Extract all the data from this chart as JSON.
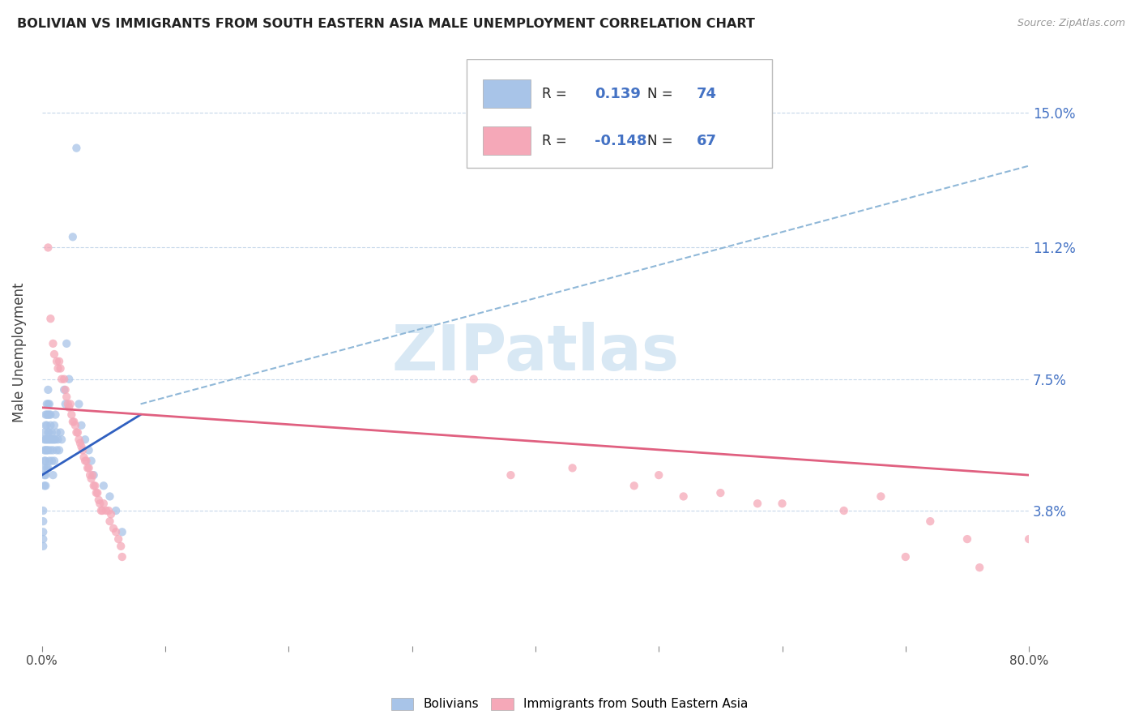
{
  "title": "BOLIVIAN VS IMMIGRANTS FROM SOUTH EASTERN ASIA MALE UNEMPLOYMENT CORRELATION CHART",
  "source": "Source: ZipAtlas.com",
  "ylabel": "Male Unemployment",
  "xlim": [
    0.0,
    0.8
  ],
  "ylim": [
    0.0,
    0.165
  ],
  "yticks": [
    0.038,
    0.075,
    0.112,
    0.15
  ],
  "ytick_labels": [
    "3.8%",
    "7.5%",
    "11.2%",
    "15.0%"
  ],
  "xticks": [
    0.0,
    0.1,
    0.2,
    0.3,
    0.4,
    0.5,
    0.6,
    0.7,
    0.8
  ],
  "blue_R": "0.139",
  "blue_N": "74",
  "pink_R": "-0.148",
  "pink_N": "67",
  "blue_scatter_color": "#a8c4e8",
  "pink_scatter_color": "#f5a8b8",
  "blue_line_color": "#3060c0",
  "pink_line_color": "#e06080",
  "dash_line_color": "#90b8d8",
  "watermark_color": "#d8e8f4",
  "legend_label_blue": "Bolivians",
  "legend_label_pink": "Immigrants from South Eastern Asia",
  "blue_x": [
    0.001,
    0.001,
    0.001,
    0.001,
    0.001,
    0.002,
    0.002,
    0.002,
    0.002,
    0.002,
    0.002,
    0.002,
    0.003,
    0.003,
    0.003,
    0.003,
    0.003,
    0.003,
    0.003,
    0.004,
    0.004,
    0.004,
    0.004,
    0.004,
    0.004,
    0.005,
    0.005,
    0.005,
    0.005,
    0.005,
    0.005,
    0.005,
    0.006,
    0.006,
    0.006,
    0.006,
    0.006,
    0.007,
    0.007,
    0.007,
    0.007,
    0.008,
    0.008,
    0.008,
    0.009,
    0.009,
    0.009,
    0.01,
    0.01,
    0.01,
    0.011,
    0.011,
    0.012,
    0.012,
    0.013,
    0.014,
    0.015,
    0.016,
    0.018,
    0.019,
    0.02,
    0.022,
    0.025,
    0.028,
    0.03,
    0.032,
    0.035,
    0.038,
    0.04,
    0.042,
    0.05,
    0.055,
    0.06,
    0.065
  ],
  "blue_y": [
    0.038,
    0.035,
    0.032,
    0.03,
    0.028,
    0.06,
    0.058,
    0.055,
    0.052,
    0.05,
    0.048,
    0.045,
    0.065,
    0.062,
    0.058,
    0.055,
    0.052,
    0.048,
    0.045,
    0.068,
    0.065,
    0.062,
    0.058,
    0.055,
    0.05,
    0.072,
    0.068,
    0.065,
    0.06,
    0.058,
    0.055,
    0.05,
    0.068,
    0.065,
    0.06,
    0.058,
    0.052,
    0.065,
    0.062,
    0.058,
    0.055,
    0.06,
    0.058,
    0.052,
    0.058,
    0.055,
    0.048,
    0.062,
    0.058,
    0.052,
    0.065,
    0.058,
    0.06,
    0.055,
    0.058,
    0.055,
    0.06,
    0.058,
    0.072,
    0.068,
    0.085,
    0.075,
    0.115,
    0.14,
    0.068,
    0.062,
    0.058,
    0.055,
    0.052,
    0.048,
    0.045,
    0.042,
    0.038,
    0.032
  ],
  "pink_x": [
    0.005,
    0.007,
    0.009,
    0.01,
    0.012,
    0.013,
    0.014,
    0.015,
    0.016,
    0.018,
    0.019,
    0.02,
    0.021,
    0.022,
    0.023,
    0.024,
    0.025,
    0.026,
    0.027,
    0.028,
    0.029,
    0.03,
    0.031,
    0.032,
    0.033,
    0.034,
    0.035,
    0.036,
    0.037,
    0.038,
    0.039,
    0.04,
    0.041,
    0.042,
    0.043,
    0.044,
    0.045,
    0.046,
    0.047,
    0.048,
    0.049,
    0.05,
    0.052,
    0.054,
    0.055,
    0.056,
    0.058,
    0.06,
    0.062,
    0.064,
    0.065,
    0.38,
    0.43,
    0.48,
    0.5,
    0.52,
    0.55,
    0.58,
    0.6,
    0.65,
    0.68,
    0.7,
    0.75,
    0.72,
    0.76,
    0.8,
    0.35
  ],
  "pink_y": [
    0.112,
    0.092,
    0.085,
    0.082,
    0.08,
    0.078,
    0.08,
    0.078,
    0.075,
    0.075,
    0.072,
    0.07,
    0.068,
    0.067,
    0.068,
    0.065,
    0.063,
    0.063,
    0.062,
    0.06,
    0.06,
    0.058,
    0.057,
    0.056,
    0.055,
    0.053,
    0.052,
    0.052,
    0.05,
    0.05,
    0.048,
    0.047,
    0.048,
    0.045,
    0.045,
    0.043,
    0.043,
    0.041,
    0.04,
    0.038,
    0.038,
    0.04,
    0.038,
    0.038,
    0.035,
    0.037,
    0.033,
    0.032,
    0.03,
    0.028,
    0.025,
    0.048,
    0.05,
    0.045,
    0.048,
    0.042,
    0.043,
    0.04,
    0.04,
    0.038,
    0.042,
    0.025,
    0.03,
    0.035,
    0.022,
    0.03,
    0.075
  ],
  "blue_line_x0": 0.0,
  "blue_line_y0": 0.048,
  "blue_line_x1": 0.08,
  "blue_line_y1": 0.065,
  "dash_line_x0": 0.08,
  "dash_line_y0": 0.068,
  "dash_line_x1": 0.8,
  "dash_line_y1": 0.135,
  "pink_line_x0": 0.0,
  "pink_line_y0": 0.067,
  "pink_line_x1": 0.8,
  "pink_line_y1": 0.048
}
